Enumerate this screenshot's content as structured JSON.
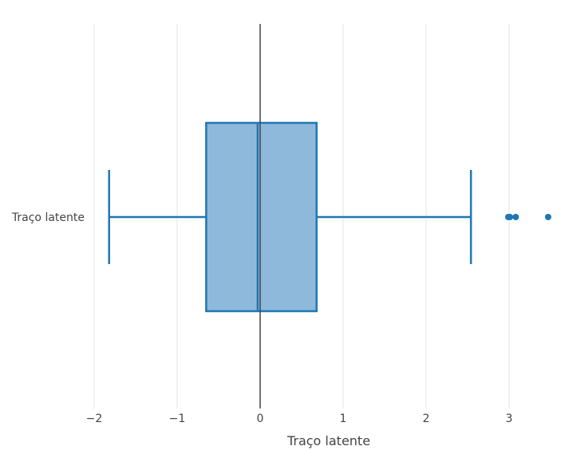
{
  "colors": {
    "box_fill": "#8fb9db",
    "box_stroke": "#1f77b4",
    "grid": "#e5e5e5",
    "zero_line": "#444444",
    "text": "#444444",
    "background": "#ffffff"
  },
  "chart_data": {
    "type": "box",
    "orientation": "horizontal",
    "title": "",
    "xlabel": "Traço latente",
    "ylabel": "",
    "xlim": [
      -2.0,
      3.45
    ],
    "x_ticks": [
      -2,
      -1,
      0,
      1,
      2,
      3
    ],
    "x_tick_labels": [
      "−2",
      "−1",
      "0",
      "1",
      "2",
      "3"
    ],
    "grid": true,
    "zero_line": true,
    "categories": [
      "Traço latente"
    ],
    "series": [
      {
        "category": "Traço latente",
        "whisker_low": -1.82,
        "q1": -0.65,
        "median": -0.03,
        "q3": 0.68,
        "whisker_high": 2.54,
        "outliers": [
          2.99,
          3.01,
          3.08,
          3.47
        ]
      }
    ]
  }
}
